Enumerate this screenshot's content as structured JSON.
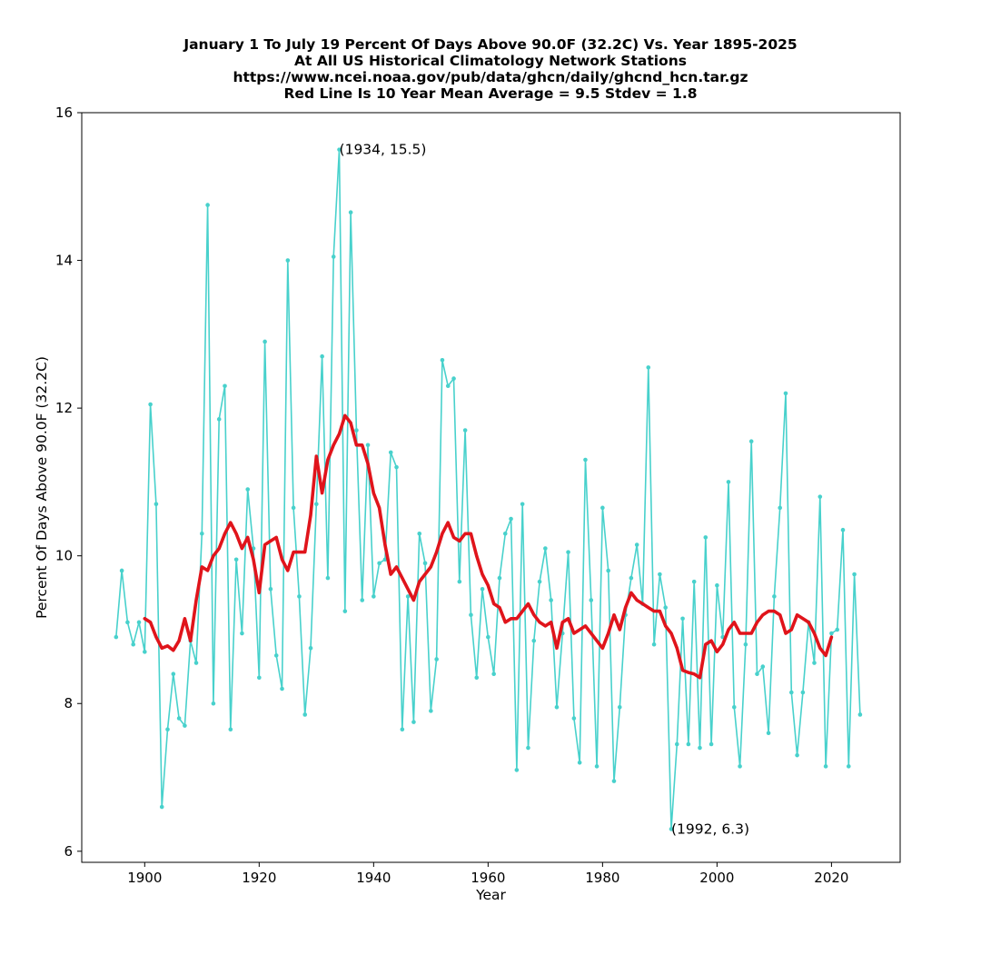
{
  "chart_data": {
    "type": "line",
    "title_lines": [
      "January 1 To July 19 Percent Of Days Above 90.0F (32.2C) Vs. Year 1895-2025",
      "At All US Historical Climatology Network Stations",
      "https://www.ncei.noaa.gov/pub/data/ghcn/daily/ghcnd_hcn.tar.gz",
      "Red Line Is 10 Year Mean  Average = 9.5 Stdev = 1.8"
    ],
    "xlabel": "Year",
    "ylabel": "Percent Of Days Above 90.0F (32.2C)",
    "xlim": [
      1889,
      2032
    ],
    "ylim": [
      5.85,
      16.0
    ],
    "xticks": [
      1900,
      1920,
      1940,
      1960,
      1980,
      2000,
      2020
    ],
    "yticks": [
      6,
      8,
      10,
      12,
      14,
      16
    ],
    "grid": false,
    "colors": {
      "series": "#48d1cc",
      "mean": "#e0141b"
    },
    "series": [
      {
        "x_start": 1895,
        "values": [
          8.9,
          9.8,
          9.1,
          8.8,
          9.1,
          8.7,
          12.05,
          10.7,
          6.6,
          7.65,
          8.4,
          7.8,
          7.7,
          8.85,
          8.55,
          10.3,
          14.75,
          8.0,
          11.85,
          12.3,
          7.65,
          9.95,
          8.95,
          10.9,
          10.1,
          8.35,
          12.9,
          9.55,
          8.65,
          8.2,
          14.0,
          10.65,
          9.45,
          7.85,
          8.75,
          10.7,
          12.7,
          9.7,
          14.05,
          15.5,
          9.25,
          14.65,
          11.7,
          9.4,
          11.5,
          9.45,
          9.9,
          9.95,
          11.4,
          11.2,
          7.65,
          9.45,
          7.75,
          10.3,
          9.9,
          7.9,
          8.6,
          12.65,
          12.3,
          12.4,
          9.65,
          11.7,
          9.2,
          8.35,
          9.55,
          8.9,
          8.4,
          9.7,
          10.3,
          10.5,
          7.1,
          10.7,
          7.4,
          8.85,
          9.65,
          10.1,
          9.4,
          7.95,
          8.95,
          10.05,
          7.8,
          7.2,
          11.3,
          9.4,
          7.15,
          10.65,
          9.8,
          6.95,
          7.95,
          9.2,
          9.7,
          10.15,
          9.35,
          12.55,
          8.8,
          9.75,
          9.3,
          6.3,
          7.45,
          9.15,
          7.45,
          9.65,
          7.4,
          10.25,
          7.45,
          9.6,
          8.9,
          11.0,
          7.95,
          7.15,
          8.8,
          11.55,
          8.4,
          8.5,
          7.6,
          9.45,
          10.65,
          12.2,
          8.15,
          7.3,
          8.15,
          9.1,
          8.55,
          10.8,
          7.15,
          8.95,
          9.0,
          10.35,
          7.15,
          9.75,
          7.85
        ]
      },
      {
        "name": "10 Year Mean",
        "x_start": 1900,
        "values": [
          9.15,
          9.1,
          8.9,
          8.75,
          8.78,
          8.72,
          8.85,
          9.15,
          8.85,
          9.4,
          9.85,
          9.8,
          10.0,
          10.1,
          10.3,
          10.45,
          10.3,
          10.1,
          10.25,
          9.95,
          9.5,
          10.15,
          10.2,
          10.25,
          9.95,
          9.8,
          10.05,
          10.05,
          10.05,
          10.55,
          11.35,
          10.85,
          11.3,
          11.5,
          11.65,
          11.9,
          11.8,
          11.5,
          11.5,
          11.25,
          10.85,
          10.65,
          10.15,
          9.75,
          9.85,
          9.7,
          9.55,
          9.4,
          9.65,
          9.75,
          9.85,
          10.05,
          10.3,
          10.45,
          10.25,
          10.2,
          10.3,
          10.3,
          10.0,
          9.75,
          9.6,
          9.35,
          9.3,
          9.1,
          9.15,
          9.15,
          9.25,
          9.35,
          9.2,
          9.1,
          9.05,
          9.1,
          8.75,
          9.1,
          9.15,
          8.95,
          9.0,
          9.05,
          8.95,
          8.85,
          8.75,
          8.95,
          9.2,
          9.0,
          9.3,
          9.5,
          9.4,
          9.35,
          9.3,
          9.25,
          9.25,
          9.05,
          8.95,
          8.75,
          8.45,
          8.42,
          8.4,
          8.35,
          8.8,
          8.85,
          8.7,
          8.8,
          9.0,
          9.1,
          8.95,
          8.95,
          8.95,
          9.1,
          9.2,
          9.25,
          9.25,
          9.2,
          8.95,
          9.0,
          9.2,
          9.15,
          9.1,
          8.95,
          8.75,
          8.65,
          8.9
        ]
      }
    ],
    "annotations": [
      {
        "text": "(1934, 15.5)",
        "x": 1934,
        "y": 15.5
      },
      {
        "text": "(1992, 6.3)",
        "x": 1992,
        "y": 6.3
      }
    ]
  }
}
